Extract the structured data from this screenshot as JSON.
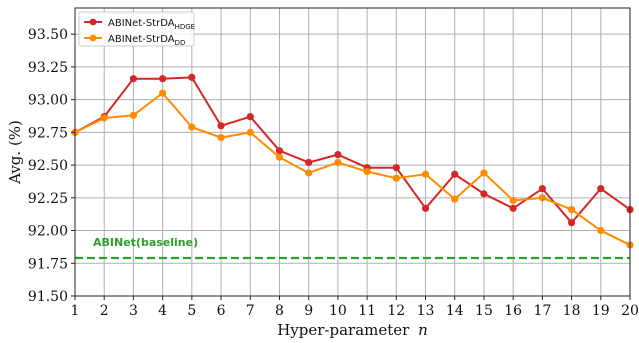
{
  "chart_data": {
    "type": "line",
    "xlabel": "Hyper-parameter",
    "xlabel_var": "n",
    "ylabel": "Avg. (%)",
    "x": [
      1,
      2,
      3,
      4,
      5,
      6,
      7,
      8,
      9,
      10,
      11,
      12,
      13,
      14,
      15,
      16,
      17,
      18,
      19,
      20
    ],
    "xlim": [
      1,
      20
    ],
    "ylim": [
      91.5,
      93.7
    ],
    "yticks": [
      "91.50",
      "91.75",
      "92.00",
      "92.25",
      "92.50",
      "92.75",
      "93.00",
      "93.25",
      "93.50"
    ],
    "grid": true,
    "legend_position": "top-left",
    "series": [
      {
        "name": "ABINet-StrDA",
        "subscript": "HDGE",
        "color": "#d62728",
        "values": [
          92.75,
          92.87,
          93.16,
          93.16,
          93.17,
          92.8,
          92.87,
          92.61,
          92.52,
          92.58,
          92.48,
          92.48,
          92.17,
          92.43,
          92.28,
          92.17,
          92.32,
          92.06,
          92.32,
          92.16
        ]
      },
      {
        "name": "ABINet-StrDA",
        "subscript": "DD",
        "color": "#ff8c00",
        "values": [
          92.75,
          92.86,
          92.88,
          93.05,
          92.79,
          92.71,
          92.75,
          92.56,
          92.44,
          92.52,
          92.45,
          92.4,
          92.43,
          92.24,
          92.44,
          92.23,
          92.25,
          92.16,
          92.0,
          91.89
        ]
      }
    ],
    "baseline": {
      "label": "ABINet(baseline)",
      "value": 91.79,
      "color": "#2ca02c"
    }
  }
}
